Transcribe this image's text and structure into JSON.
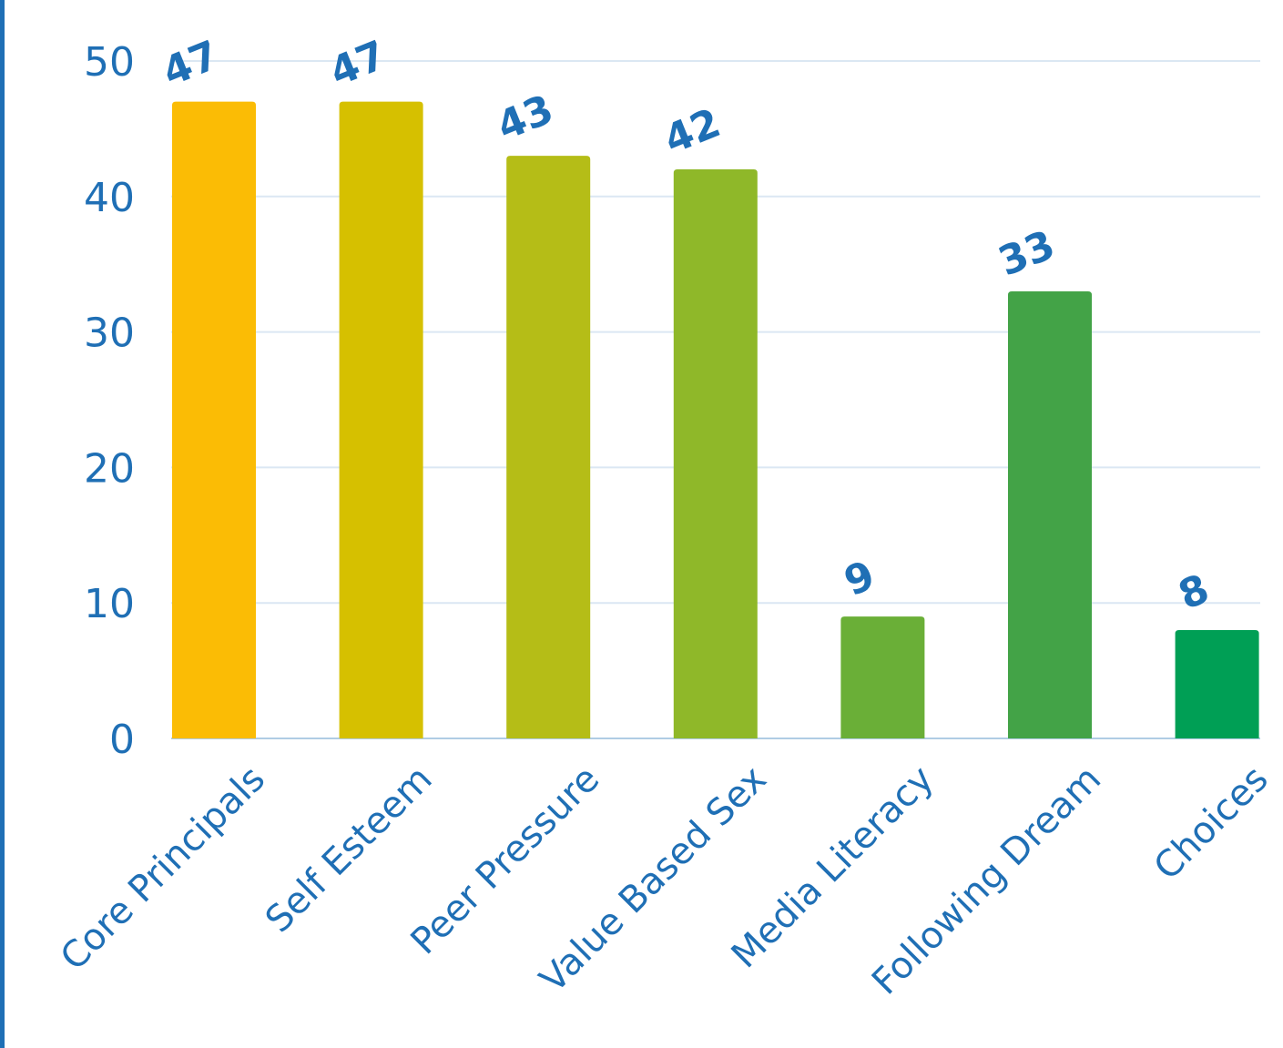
{
  "chart_data": {
    "type": "bar",
    "title": "",
    "xlabel": "",
    "ylabel": "",
    "categories": [
      "Core Principals",
      "Self Esteem",
      "Peer Pressure",
      "Value Based Sex",
      "Media Literacy",
      "Following Dream",
      "Choices"
    ],
    "values": [
      47,
      47,
      43,
      42,
      9,
      33,
      8
    ],
    "value_labels": [
      "47",
      "47",
      "43",
      "42",
      "9",
      "33",
      "8"
    ],
    "colors": [
      "#fbbc05",
      "#d6c000",
      "#b5bd17",
      "#8fb829",
      "#6aaf37",
      "#43a347",
      "#009f55"
    ],
    "ylim": [
      0,
      50
    ],
    "yticks": [
      0,
      10,
      20,
      30,
      40,
      50
    ],
    "ytick_labels": [
      "0",
      "10",
      "20",
      "30",
      "40",
      "50"
    ],
    "grid": true,
    "legend": "none",
    "axis_color": "#1f6fb5",
    "grid_color": "#dbe7f3"
  }
}
